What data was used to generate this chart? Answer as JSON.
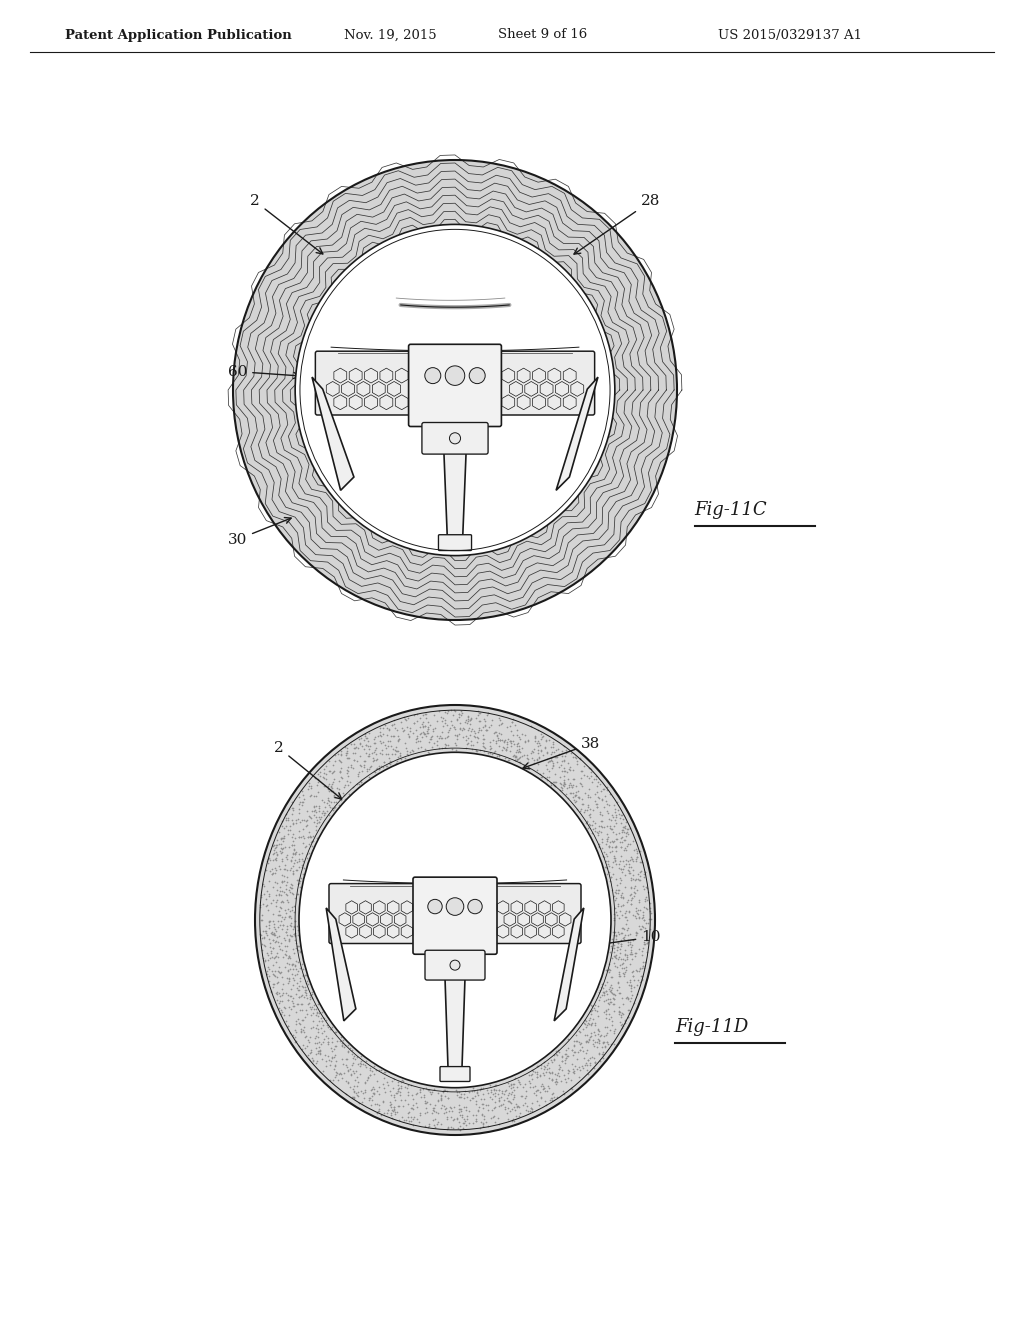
{
  "bg_color": "#ffffff",
  "header_text": "Patent Application Publication",
  "header_date": "Nov. 19, 2015",
  "header_sheet": "Sheet 9 of 16",
  "header_patent": "US 2015/0329137 A1",
  "fig_top_label": "Fig-11C",
  "fig_bot_label": "Fig-11D",
  "lc": "#1a1a1a",
  "rim_gray_wavy": "#c8c8c8",
  "rim_gray_dot": "#d0d0d0",
  "inner_bg": "#ffffff",
  "hub_fill": "#f5f5f5",
  "hex_fill": "#e8e8e8",
  "spoke_fill": "#f0f0f0"
}
